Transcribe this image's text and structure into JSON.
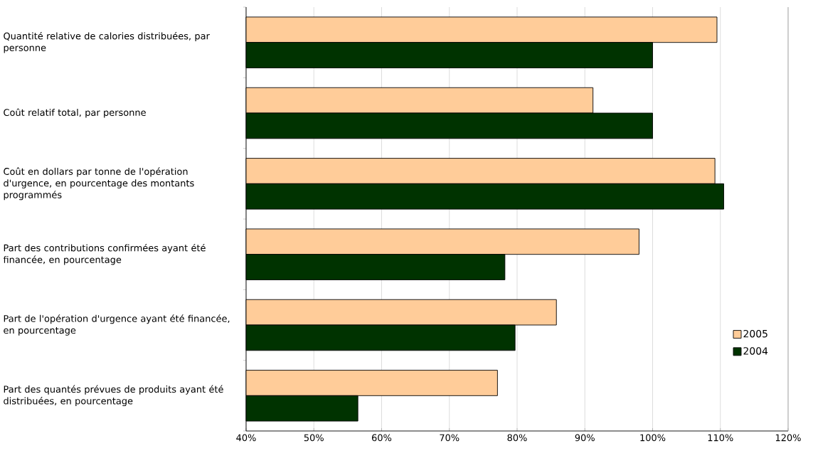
{
  "chart_data": {
    "type": "bar",
    "orientation": "horizontal",
    "categories": [
      "Quantité relative de calories distribuées, par personne",
      "Coût relatif total, par personne",
      "Coût en dollars par tonne de l'opération d'urgence, en pourcentage des montants programmés",
      "Part des contributions confirmées ayant été financée, en pourcentage",
      "Part de l'opération d'urgence ayant été financée, en pourcentage",
      "Part des quantés prévues de produits ayant été distribuées, en pourcentage"
    ],
    "series": [
      {
        "name": "2005",
        "color": "#ffcc99",
        "values": [
          109.5,
          91.2,
          109.2,
          98,
          85.8,
          77.1
        ]
      },
      {
        "name": "2004",
        "color": "#003300",
        "values": [
          100,
          100,
          110.5,
          78.2,
          79.7,
          56.5
        ]
      }
    ],
    "xlim": [
      40,
      120
    ],
    "xticks": [
      {
        "value": 40,
        "label": "40%"
      },
      {
        "value": 50,
        "label": "50%"
      },
      {
        "value": 60,
        "label": "60%"
      },
      {
        "value": 70,
        "label": "70%"
      },
      {
        "value": 80,
        "label": "80%"
      },
      {
        "value": 90,
        "label": "90%"
      },
      {
        "value": 100,
        "label": "100%"
      },
      {
        "value": 110,
        "label": "110%"
      },
      {
        "value": 120,
        "label": "120%"
      }
    ],
    "grid": "x",
    "legend": "bottom right"
  }
}
